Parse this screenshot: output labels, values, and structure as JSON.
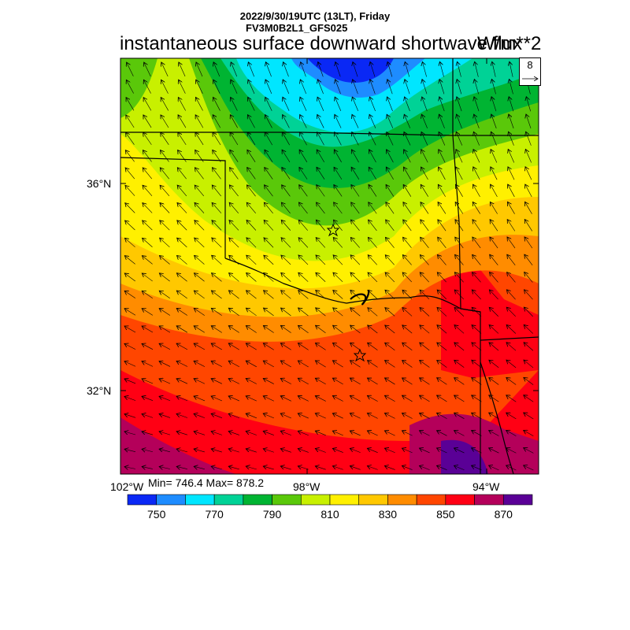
{
  "header": {
    "line1": "2022/9/30/19UTC (13LT), Friday",
    "line2": "FV3M0B2L1_GFS025",
    "title": "instantaneous surface downward shortwave flux",
    "units": "W/m**2"
  },
  "axes": {
    "lat_labels": [
      "36°N",
      "32°N"
    ],
    "lon_labels": [
      "102°W",
      "98°W",
      "94°W"
    ]
  },
  "stats": {
    "text": "Min= 746.4 Max= 878.2"
  },
  "vector_reference": {
    "value": "8"
  },
  "colorbar": {
    "colors": [
      "#0a28f5",
      "#1e8cff",
      "#00e6ff",
      "#00d296",
      "#00b432",
      "#5ac80a",
      "#c8f000",
      "#fff000",
      "#ffc800",
      "#ff8c00",
      "#ff4600",
      "#ff0014",
      "#b4005a",
      "#5a0096"
    ],
    "labels": [
      "750",
      "770",
      "790",
      "810",
      "830",
      "850",
      "870"
    ]
  }
}
